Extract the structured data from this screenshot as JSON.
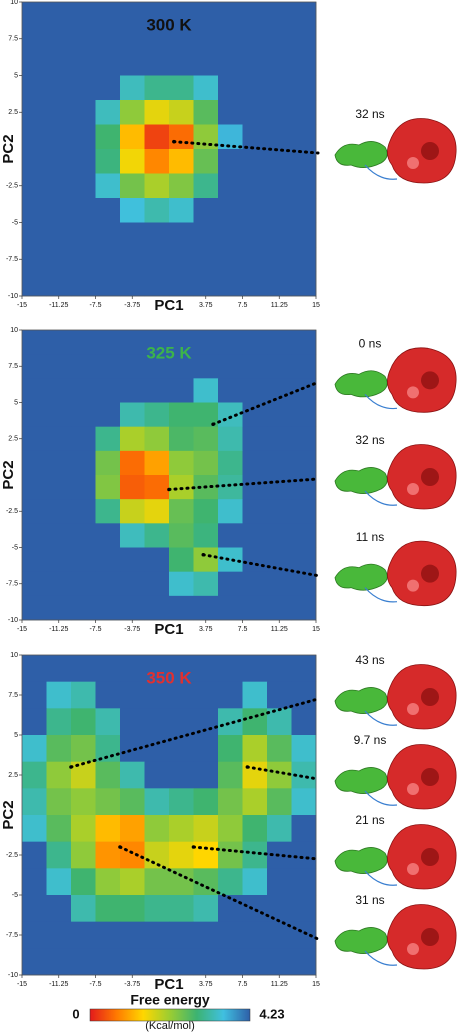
{
  "chart_data": [
    {
      "type": "heatmap",
      "title": "300 K",
      "title_color": "#111111",
      "x_label": "PC1",
      "y_label": "PC2",
      "xlim": [
        -15,
        15
      ],
      "ylim": [
        -10,
        10
      ],
      "xticks": [
        -15,
        -11.25,
        -7.5,
        -3.75,
        3.75,
        7.5,
        11.25,
        15
      ],
      "yticks": [
        -10,
        -7.5,
        -5,
        -2.5,
        2.5,
        5,
        7.5,
        10
      ],
      "z": [
        [
          4.23,
          4.23,
          4.23,
          4.23,
          4.23,
          4.23,
          4.23,
          4.23,
          4.23,
          4.23,
          4.23,
          4.23
        ],
        [
          4.23,
          4.23,
          4.23,
          4.23,
          4.23,
          4.23,
          4.23,
          4.23,
          4.23,
          4.23,
          4.23,
          4.23
        ],
        [
          4.23,
          4.23,
          4.23,
          4.23,
          4.23,
          4.23,
          4.23,
          4.23,
          4.23,
          4.23,
          4.23,
          4.23
        ],
        [
          4.23,
          4.23,
          4.23,
          4.23,
          3.3,
          3.0,
          3.0,
          3.4,
          4.23,
          4.23,
          4.23,
          4.23
        ],
        [
          4.23,
          4.23,
          4.23,
          3.3,
          2.2,
          1.6,
          1.8,
          2.6,
          4.23,
          4.23,
          4.23,
          4.23
        ],
        [
          4.23,
          4.23,
          4.23,
          2.8,
          1.2,
          0.3,
          0.6,
          2.2,
          3.6,
          4.23,
          4.23,
          4.23
        ],
        [
          4.23,
          4.23,
          4.23,
          2.9,
          1.5,
          0.8,
          1.2,
          2.5,
          4.23,
          4.23,
          4.23,
          4.23
        ],
        [
          4.23,
          4.23,
          4.23,
          3.4,
          2.4,
          2.0,
          2.3,
          3.0,
          4.23,
          4.23,
          4.23,
          4.23
        ],
        [
          4.23,
          4.23,
          4.23,
          4.23,
          3.5,
          3.2,
          3.4,
          4.23,
          4.23,
          4.23,
          4.23,
          4.23
        ],
        [
          4.23,
          4.23,
          4.23,
          4.23,
          4.23,
          4.23,
          4.23,
          4.23,
          4.23,
          4.23,
          4.23,
          4.23
        ],
        [
          4.23,
          4.23,
          4.23,
          4.23,
          4.23,
          4.23,
          4.23,
          4.23,
          4.23,
          4.23,
          4.23,
          4.23
        ],
        [
          4.23,
          4.23,
          4.23,
          4.23,
          4.23,
          4.23,
          4.23,
          4.23,
          4.23,
          4.23,
          4.23,
          4.23
        ]
      ],
      "annotations": [
        {
          "label": "32 ns",
          "x": 0.5,
          "y": 0.5
        }
      ]
    },
    {
      "type": "heatmap",
      "title": "325 K",
      "title_color": "#3cb44b",
      "x_label": "PC1",
      "y_label": "PC2",
      "xlim": [
        -15,
        15
      ],
      "ylim": [
        -10,
        10
      ],
      "xticks": [
        -15,
        -11.25,
        -7.5,
        -3.75,
        3.75,
        7.5,
        11.25,
        15
      ],
      "yticks": [
        -10,
        -7.5,
        -5,
        -2.5,
        2.5,
        5,
        7.5,
        10
      ],
      "z": [
        [
          4.23,
          4.23,
          4.23,
          4.23,
          4.23,
          4.23,
          4.23,
          4.23,
          4.23,
          4.23,
          4.23,
          4.23
        ],
        [
          4.23,
          4.23,
          4.23,
          4.23,
          4.23,
          4.23,
          4.23,
          4.23,
          4.23,
          4.23,
          4.23,
          4.23
        ],
        [
          4.23,
          4.23,
          4.23,
          4.23,
          4.23,
          4.23,
          4.23,
          3.4,
          4.23,
          4.23,
          4.23,
          4.23
        ],
        [
          4.23,
          4.23,
          4.23,
          4.23,
          3.2,
          3.0,
          2.8,
          2.8,
          3.3,
          4.23,
          4.23,
          4.23
        ],
        [
          4.23,
          4.23,
          4.23,
          3.0,
          2.0,
          2.2,
          2.7,
          2.6,
          3.2,
          4.23,
          4.23,
          4.23
        ],
        [
          4.23,
          4.23,
          4.23,
          2.4,
          0.6,
          1.0,
          2.2,
          2.4,
          3.0,
          4.23,
          4.23,
          4.23
        ],
        [
          4.23,
          4.23,
          4.23,
          2.3,
          0.5,
          0.6,
          2.0,
          2.6,
          3.1,
          4.23,
          4.23,
          4.23
        ],
        [
          4.23,
          4.23,
          4.23,
          3.0,
          1.8,
          1.6,
          2.5,
          2.8,
          3.4,
          4.23,
          4.23,
          4.23
        ],
        [
          4.23,
          4.23,
          4.23,
          4.23,
          3.3,
          3.0,
          2.6,
          2.9,
          4.23,
          4.23,
          4.23,
          4.23
        ],
        [
          4.23,
          4.23,
          4.23,
          4.23,
          4.23,
          4.23,
          2.8,
          2.2,
          3.4,
          4.23,
          4.23,
          4.23
        ],
        [
          4.23,
          4.23,
          4.23,
          4.23,
          4.23,
          4.23,
          3.4,
          3.2,
          4.23,
          4.23,
          4.23,
          4.23
        ],
        [
          4.23,
          4.23,
          4.23,
          4.23,
          4.23,
          4.23,
          4.23,
          4.23,
          4.23,
          4.23,
          4.23,
          4.23
        ]
      ],
      "annotations": [
        {
          "label": "0 ns",
          "x": 4.5,
          "y": 3.5
        },
        {
          "label": "32 ns",
          "x": 0,
          "y": -1
        },
        {
          "label": "11 ns",
          "x": 3.5,
          "y": -5.5
        }
      ]
    },
    {
      "type": "heatmap",
      "title": "350 K",
      "title_color": "#e03030",
      "x_label": "PC1",
      "y_label": "PC2",
      "xlim": [
        -15,
        15
      ],
      "ylim": [
        -10,
        10
      ],
      "xticks": [
        -15,
        -11.25,
        -7.5,
        -3.75,
        3.75,
        7.5,
        11.25,
        15
      ],
      "yticks": [
        -10,
        -7.5,
        -5,
        -2.5,
        2.5,
        5,
        7.5,
        10
      ],
      "z": [
        [
          4.23,
          4.23,
          4.23,
          4.23,
          4.23,
          4.23,
          4.23,
          4.23,
          4.23,
          4.23,
          4.23,
          4.23
        ],
        [
          4.23,
          3.4,
          3.2,
          4.23,
          4.23,
          4.23,
          4.23,
          4.23,
          4.23,
          3.4,
          4.23,
          4.23
        ],
        [
          4.23,
          3.0,
          2.8,
          3.2,
          4.23,
          4.23,
          4.23,
          4.23,
          3.2,
          2.8,
          3.2,
          4.23
        ],
        [
          3.4,
          2.6,
          2.4,
          3.0,
          4.23,
          4.23,
          4.23,
          4.23,
          2.8,
          2.0,
          2.6,
          3.4
        ],
        [
          3.0,
          2.2,
          1.8,
          2.6,
          3.2,
          4.23,
          4.23,
          4.23,
          2.6,
          1.6,
          2.2,
          3.2
        ],
        [
          3.2,
          2.4,
          2.2,
          2.4,
          2.6,
          3.2,
          3.0,
          2.8,
          2.4,
          2.0,
          2.6,
          3.4
        ],
        [
          3.4,
          2.6,
          2.0,
          1.2,
          1.0,
          2.2,
          2.0,
          1.8,
          2.2,
          2.8,
          3.2,
          4.23
        ],
        [
          4.23,
          3.0,
          2.2,
          0.9,
          0.8,
          1.8,
          1.6,
          1.4,
          2.4,
          3.0,
          4.23,
          4.23
        ],
        [
          4.23,
          3.4,
          2.8,
          2.2,
          2.0,
          2.4,
          2.4,
          2.6,
          3.0,
          3.4,
          4.23,
          4.23
        ],
        [
          4.23,
          4.23,
          3.2,
          2.8,
          2.8,
          3.0,
          3.0,
          3.2,
          4.23,
          4.23,
          4.23,
          4.23
        ],
        [
          4.23,
          4.23,
          4.23,
          4.23,
          4.23,
          4.23,
          4.23,
          4.23,
          4.23,
          4.23,
          4.23,
          4.23
        ],
        [
          4.23,
          4.23,
          4.23,
          4.23,
          4.23,
          4.23,
          4.23,
          4.23,
          4.23,
          4.23,
          4.23,
          4.23
        ]
      ],
      "annotations": [
        {
          "label": "43 ns",
          "x": -10,
          "y": 3
        },
        {
          "label": "9.7 ns",
          "x": 8,
          "y": 3
        },
        {
          "label": "21 ns",
          "x": 2.5,
          "y": -2
        },
        {
          "label": "31 ns",
          "x": -5,
          "y": -2
        }
      ]
    }
  ],
  "colorbar": {
    "title": "Free energy",
    "min": 0,
    "max": 4.23,
    "unit": "(Kcal/mol)",
    "colors": [
      "#e31a1c",
      "#ff7a00",
      "#ffd700",
      "#9acd32",
      "#3cb371",
      "#40c0e0",
      "#2e5fa8"
    ]
  }
}
